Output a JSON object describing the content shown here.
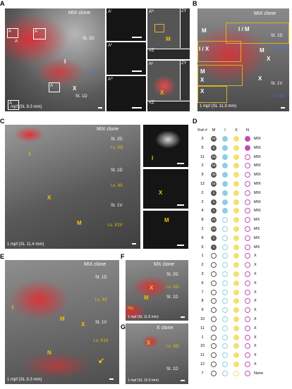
{
  "panels": {
    "A": {
      "label": "A",
      "title": "MIX clone",
      "labels": {
        "st2d": "St. 2D",
        "i": "I",
        "ls_xd": "l.s. XD",
        "x": "X",
        "st1d": "St. 1D",
        "mpf": "1 mpf (SL 9.3 mm)"
      },
      "boxes": [
        "Aᴵ",
        "Aᴵᴵ",
        "Aᴵᵛ",
        "Aᴵᴵᴵ"
      ],
      "box_labels": [
        "A",
        "A",
        "A",
        "A",
        "A"
      ],
      "sub": [
        "Aⁱ",
        "Aⁱⁱ",
        "Aⁱⁱⁱ",
        "Aⁱᵛ",
        "Aᵛ"
      ],
      "sub_labels": {
        "m": "M",
        "x": "X",
        "zy": "ZY",
        "xz": "XZ"
      }
    },
    "B": {
      "label": "B",
      "title": "MIX clone",
      "labels": {
        "m": "M",
        "im": "I / M",
        "ix": "I / X",
        "st1d": "St. 1D",
        "ls_xd": "l.s. XD",
        "x": "X",
        "st1v": "St. 1V",
        "ls_x1v": "l.s. X1V",
        "mpf": "1 mpf (SL 11.3 mm)"
      }
    },
    "C": {
      "label": "C",
      "title": "MIX clone",
      "labels": {
        "st2d": "St. 2D",
        "ls_xd": "l.s. XD",
        "st1d": "St. 1D",
        "ls_x0": "l.s. X0",
        "st1v": "St. 1V",
        "ls_x1v": "l.s. X1V",
        "i": "I",
        "x": "X",
        "m": "M",
        "mpf": "1 mpf (SL 11.4 mm)"
      }
    },
    "D": {
      "label": "D",
      "header": {
        "fish": "Fish #",
        "m": "M",
        "i": "I",
        "x": "X",
        "n": "N"
      }
    },
    "E": {
      "label": "E",
      "title": "MIX clone",
      "labels": {
        "st1d": "St. 1D",
        "ls_x0": "l.s. X0",
        "i": "I",
        "m": "M",
        "x": "X",
        "st1v": "St. 1V",
        "ls_x1v": "l.s. X1V",
        "n": "N",
        "mpf": "1 mpf (SL 9.3 mm)"
      }
    },
    "F": {
      "label": "F",
      "title": "MX clone",
      "labels": {
        "st2d": "St. 2D",
        "x": "X",
        "ls_xd": "l.s. XD",
        "m": "M",
        "st1d": "St. 1D",
        "mu": "Mu",
        "mpf": "1 mpf (SL 11.6 mm)"
      }
    },
    "G": {
      "label": "G",
      "title": "X clone",
      "labels": {
        "x": "X",
        "ls_xd": "l.s. XD",
        "st1d": "St. 1D",
        "mpf": "1 mpf (SL 10.5 mm)"
      }
    }
  },
  "table": [
    {
      "fish": "3",
      "m": "20",
      "i": true,
      "x": true,
      "n": true,
      "type": "MIX"
    },
    {
      "fish": "5",
      "m": "2",
      "i": true,
      "x": true,
      "n": true,
      "type": "MIX"
    },
    {
      "fish": "11",
      "m": "10",
      "i": true,
      "x": true,
      "n": false,
      "type": "MIX"
    },
    {
      "fish": "2",
      "m": "10",
      "i": true,
      "x": true,
      "n": false,
      "type": "MIX"
    },
    {
      "fish": "9",
      "m": "30",
      "i": true,
      "x": true,
      "n": false,
      "type": "MIX"
    },
    {
      "fish": "12",
      "m": "15",
      "i": true,
      "x": true,
      "n": false,
      "type": "MIX"
    },
    {
      "fish": "2",
      "m": "1",
      "i": true,
      "x": true,
      "n": false,
      "type": "MIX"
    },
    {
      "fish": "2",
      "m": "3",
      "i": true,
      "x": true,
      "n": false,
      "type": "MIX"
    },
    {
      "fish": "4",
      "m": "1",
      "i": true,
      "x": true,
      "n": false,
      "type": "MIX"
    },
    {
      "fish": "8",
      "m": "24",
      "i": false,
      "x": true,
      "n": false,
      "type": "MX"
    },
    {
      "fish": "2",
      "m": "20",
      "i": false,
      "x": true,
      "n": false,
      "type": "MX"
    },
    {
      "fish": "6",
      "m": "1",
      "i": false,
      "x": true,
      "n": false,
      "type": "MX"
    },
    {
      "fish": "5",
      "m": "1",
      "i": false,
      "x": true,
      "n": false,
      "type": "MX"
    },
    {
      "fish": "1",
      "m": "",
      "i": false,
      "x": true,
      "n": false,
      "type": "X"
    },
    {
      "fish": "2",
      "m": "",
      "i": false,
      "x": true,
      "n": false,
      "type": "X"
    },
    {
      "fish": "3",
      "m": "",
      "i": false,
      "x": true,
      "n": false,
      "type": "X"
    },
    {
      "fish": "6",
      "m": "",
      "i": false,
      "x": true,
      "n": false,
      "type": "X"
    },
    {
      "fish": "7",
      "m": "",
      "i": false,
      "x": true,
      "n": false,
      "type": "X"
    },
    {
      "fish": "8",
      "m": "",
      "i": false,
      "x": true,
      "n": false,
      "type": "X"
    },
    {
      "fish": "9",
      "m": "",
      "i": false,
      "x": true,
      "n": false,
      "type": "X"
    },
    {
      "fish": "10",
      "m": "",
      "i": false,
      "x": true,
      "n": false,
      "type": "X"
    },
    {
      "fish": "11",
      "m": "",
      "i": false,
      "x": true,
      "n": false,
      "type": "X"
    },
    {
      "fish": "1",
      "m": "",
      "i": false,
      "x": true,
      "n": false,
      "type": "X"
    },
    {
      "fish": "10",
      "m": "",
      "i": false,
      "x": true,
      "n": false,
      "type": "X"
    },
    {
      "fish": "11",
      "m": "",
      "i": false,
      "x": true,
      "n": false,
      "type": "X"
    },
    {
      "fish": "12",
      "m": "",
      "i": false,
      "x": true,
      "n": false,
      "type": "X"
    },
    {
      "fish": "7",
      "m": "",
      "i": false,
      "x": false,
      "n": false,
      "type": "None"
    }
  ],
  "colors": {
    "m": "#555555",
    "i": "#8ecfe3",
    "x": "#f3e070",
    "n": "#c04fb2",
    "clone_red": "#e8282e",
    "label_yellow": "#f2c200",
    "label_blue": "#3b6fe0"
  }
}
